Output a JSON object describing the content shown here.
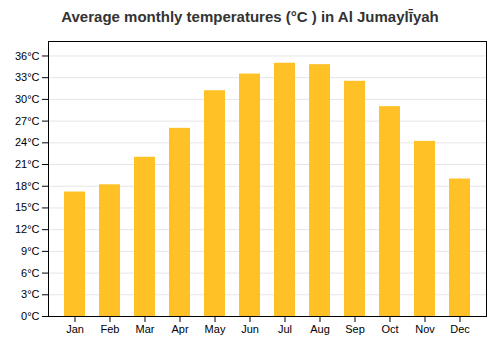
{
  "chart_data": {
    "type": "bar",
    "title": "Average monthly temperatures (°C ) in Al Jumaylī̄yah",
    "categories": [
      "Jan",
      "Feb",
      "Mar",
      "Apr",
      "May",
      "Jun",
      "Jul",
      "Aug",
      "Sep",
      "Oct",
      "Nov",
      "Dec"
    ],
    "values": [
      17.2,
      18.2,
      22.0,
      26.0,
      31.2,
      33.5,
      35.0,
      34.8,
      32.5,
      29.0,
      24.2,
      19.0
    ],
    "color": "#FFC125",
    "ylim": [
      0,
      38
    ],
    "yticks": [
      {
        "value": 0,
        "label": "0°C"
      },
      {
        "value": 3,
        "label": "3°C"
      },
      {
        "value": 6,
        "label": "6°C"
      },
      {
        "value": 9,
        "label": "9°C"
      },
      {
        "value": 12,
        "label": "12°C"
      },
      {
        "value": 15,
        "label": "15°C"
      },
      {
        "value": 18,
        "label": "18°C"
      },
      {
        "value": 21,
        "label": "21°C"
      },
      {
        "value": 24,
        "label": "24°C"
      },
      {
        "value": 27,
        "label": "27°C"
      },
      {
        "value": 30,
        "label": "30°C"
      },
      {
        "value": 33,
        "label": "33°C"
      },
      {
        "value": 36,
        "label": "36°C"
      }
    ],
    "grid": true
  }
}
